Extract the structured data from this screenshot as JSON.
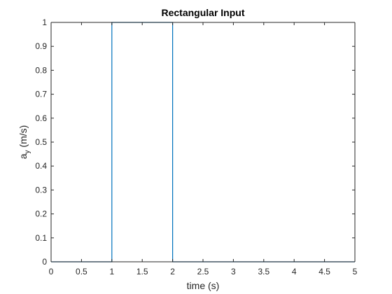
{
  "chart_data": {
    "type": "line",
    "title": "Rectangular Input",
    "xlabel": "time (s)",
    "ylabel_base": "a",
    "ylabel_sub": "y",
    "ylabel_unit": " (m/s)",
    "xlim": [
      0,
      5
    ],
    "ylim": [
      0,
      1
    ],
    "xticks": [
      0,
      0.5,
      1,
      1.5,
      2,
      2.5,
      3,
      3.5,
      4,
      4.5,
      5
    ],
    "xtick_labels": [
      "0",
      "0.5",
      "1",
      "1.5",
      "2",
      "2.5",
      "3",
      "3.5",
      "4",
      "4.5",
      "5"
    ],
    "yticks": [
      0,
      0.1,
      0.2,
      0.3,
      0.4,
      0.5,
      0.6,
      0.7,
      0.8,
      0.9,
      1
    ],
    "ytick_labels": [
      "0",
      "0.1",
      "0.2",
      "0.3",
      "0.4",
      "0.5",
      "0.6",
      "0.7",
      "0.8",
      "0.9",
      "1"
    ],
    "grid": false,
    "box": true,
    "series": [
      {
        "x": [
          0,
          1,
          1,
          2,
          2,
          5
        ],
        "y": [
          0,
          0,
          1,
          1,
          0,
          0
        ],
        "color": "#0072BD"
      }
    ]
  },
  "colors": {
    "axis": "#262626",
    "background": "#ffffff"
  }
}
